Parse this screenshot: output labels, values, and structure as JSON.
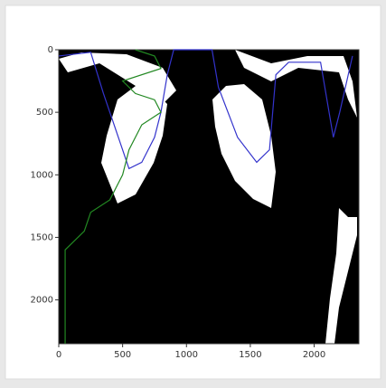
{
  "chart_data": {
    "type": "line",
    "xlim": [
      0,
      2350
    ],
    "ylim": [
      2350,
      0
    ],
    "xticks": [
      0,
      500,
      1000,
      1500,
      2000
    ],
    "yticks": [
      0,
      500,
      1000,
      1500,
      2000
    ],
    "series": [
      {
        "color": "#3333cc",
        "x": [
          0,
          250,
          350,
          450,
          550,
          650,
          750,
          800,
          850,
          900,
          1200,
          1250,
          1400,
          1550,
          1650,
          1700,
          1800,
          2050,
          2150,
          2200,
          2300
        ],
        "values": [
          50,
          20,
          350,
          650,
          950,
          900,
          700,
          500,
          200,
          0,
          0,
          300,
          700,
          900,
          800,
          200,
          100,
          100,
          700,
          500,
          50
        ]
      },
      {
        "color": "#228822",
        "x": [
          50,
          50,
          200,
          250,
          400,
          500,
          550,
          650,
          800,
          750,
          600,
          500,
          800,
          750,
          600
        ],
        "values": [
          2350,
          1600,
          1450,
          1300,
          1200,
          1000,
          800,
          600,
          500,
          400,
          350,
          250,
          150,
          50,
          0
        ]
      }
    ]
  }
}
